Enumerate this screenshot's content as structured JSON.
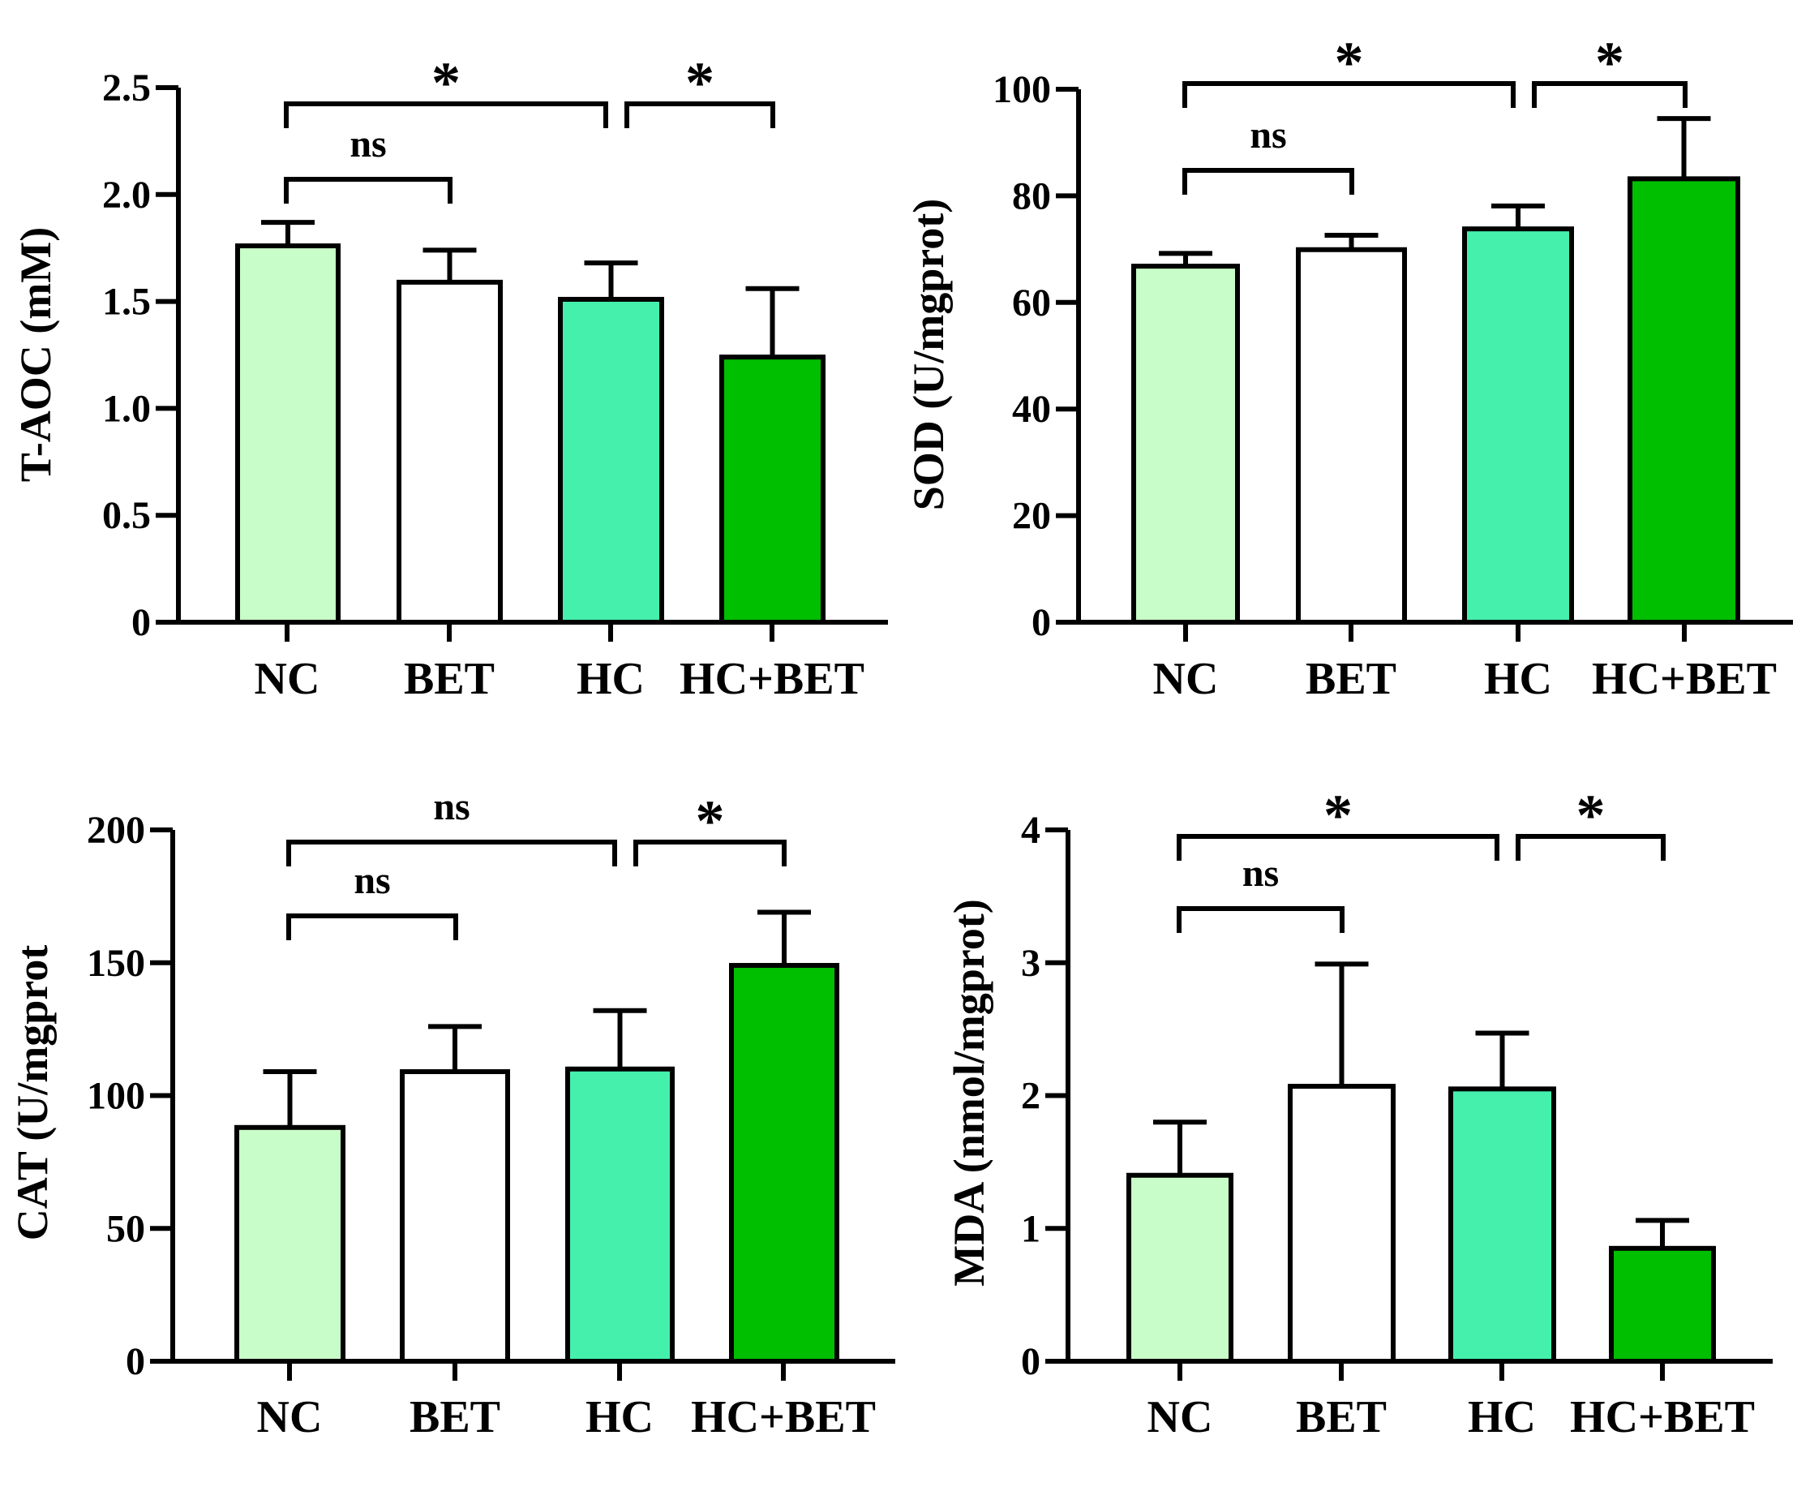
{
  "colors": {
    "NC": "#c8fcc8",
    "BET": "#ffffff",
    "HC": "#44f0ac",
    "HC+BET": "#00be00",
    "stroke": "#000000"
  },
  "chart_data": [
    {
      "type": "bar",
      "position": "top-left",
      "ylabel": "T-AOC (mM)",
      "ylim": [
        0,
        2.5
      ],
      "yticks": [
        0,
        0.5,
        1.0,
        1.5,
        2.0,
        2.5
      ],
      "ytick_labels": [
        "0",
        "0.5",
        "1.0",
        "1.5",
        "2.0",
        "2.5"
      ],
      "categories": [
        "NC",
        "BET",
        "HC",
        "HC+BET"
      ],
      "values": [
        1.76,
        1.59,
        1.51,
        1.24
      ],
      "errors": [
        0.11,
        0.15,
        0.17,
        0.32
      ],
      "comparisons": [
        {
          "from": 0,
          "to": 1,
          "label": "ns",
          "level": 0.0
        },
        {
          "from": 0,
          "to": 2,
          "label": "*",
          "level": 2.36
        },
        {
          "from": 2,
          "to": 3,
          "label": "*",
          "level": 2.36
        }
      ]
    },
    {
      "type": "bar",
      "position": "top-right",
      "ylabel": "SOD (U/mgprot)",
      "ylim": [
        0,
        100
      ],
      "yticks": [
        0,
        20,
        40,
        60,
        80,
        100
      ],
      "ytick_labels": [
        "0",
        "20",
        "40",
        "60",
        "80",
        "100"
      ],
      "categories": [
        "NC",
        "BET",
        "HC",
        "HC+BET"
      ],
      "values": [
        66.8,
        69.9,
        73.8,
        83.2
      ],
      "errors": [
        2.4,
        2.7,
        4.3,
        11.3
      ],
      "comparisons": [
        {
          "from": 0,
          "to": 1,
          "label": "ns",
          "level": 0.0
        },
        {
          "from": 0,
          "to": 2,
          "label": "*",
          "level": 101.5
        },
        {
          "from": 2,
          "to": 3,
          "label": "*",
          "level": 101.5
        }
      ]
    },
    {
      "type": "bar",
      "position": "bottom-left",
      "ylabel": "CAT (U/mgprot",
      "ylim": [
        0,
        200
      ],
      "yticks": [
        0,
        50,
        100,
        150,
        200
      ],
      "ytick_labels": [
        "0",
        "50",
        "100",
        "150",
        "200"
      ],
      "categories": [
        "NC",
        "BET",
        "HC",
        "HC+BET"
      ],
      "values": [
        88,
        109,
        110,
        149
      ],
      "errors": [
        21,
        17,
        22,
        20
      ],
      "comparisons": [
        {
          "from": 0,
          "to": 1,
          "label": "ns",
          "level": 0.0
        },
        {
          "from": 0,
          "to": 2,
          "label": "ns",
          "level": 196
        },
        {
          "from": 2,
          "to": 3,
          "label": "*",
          "level": 196
        }
      ]
    },
    {
      "type": "bar",
      "position": "bottom-right",
      "ylabel": "MDA (nmol/mgprot)",
      "ylim": [
        0,
        4
      ],
      "yticks": [
        0,
        1,
        2,
        3,
        4
      ],
      "ytick_labels": [
        "0",
        "1",
        "2",
        "3",
        "4"
      ],
      "categories": [
        "NC",
        "BET",
        "HC",
        "HC+BET"
      ],
      "values": [
        1.4,
        2.07,
        2.05,
        0.85
      ],
      "errors": [
        0.4,
        0.92,
        0.42,
        0.21
      ],
      "comparisons": [
        {
          "from": 0,
          "to": 1,
          "label": "ns",
          "level": 0.0
        },
        {
          "from": 0,
          "to": 2,
          "label": "*",
          "level": 3.96
        },
        {
          "from": 2,
          "to": 3,
          "label": "*",
          "level": 3.96
        }
      ]
    }
  ]
}
